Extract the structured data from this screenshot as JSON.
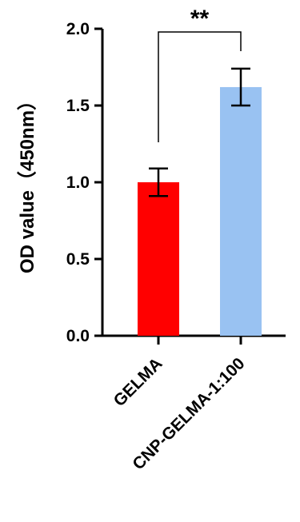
{
  "chart_data": {
    "type": "bar",
    "categories": [
      "GELMA",
      "CNP-GELMA-1:100"
    ],
    "values": [
      1.0,
      1.62
    ],
    "errors": [
      0.09,
      0.12
    ],
    "colors": [
      "#ff0000",
      "#99c2f2"
    ],
    "xlabel": "",
    "ylabel": "OD value（450nm）",
    "ylim": [
      0,
      2.0
    ],
    "yticks": [
      0.0,
      0.5,
      1.0,
      1.5,
      2.0
    ],
    "ytick_labels": [
      "0.0",
      "0.5",
      "1.0",
      "1.5",
      "2.0"
    ],
    "significance": {
      "label": "**",
      "between": [
        0,
        1
      ]
    },
    "grid": false,
    "legend": "none"
  }
}
